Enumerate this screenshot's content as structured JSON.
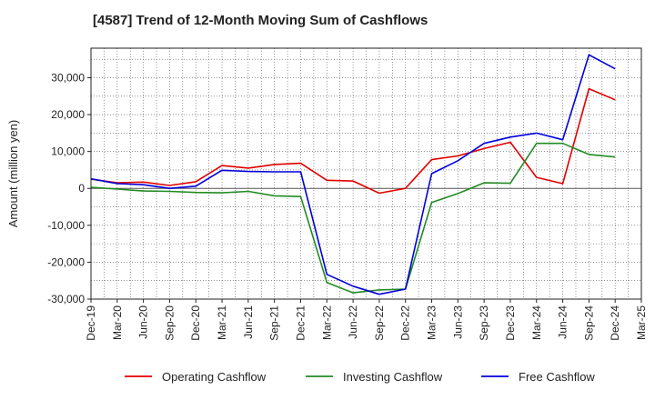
{
  "title": "[4587]  Trend of 12-Month Moving Sum of Cashflows",
  "chart_data": {
    "type": "line",
    "title": "[4587]  Trend of 12-Month Moving Sum of Cashflows",
    "xlabel": "",
    "ylabel": "Amount (million yen)",
    "ylim": [
      -30000,
      38000
    ],
    "yticks": [
      -30000,
      -20000,
      -10000,
      0,
      10000,
      20000,
      30000
    ],
    "ytick_labels": [
      "-30,000",
      "-20,000",
      "-10,000",
      "0",
      "10,000",
      "20,000",
      "30,000"
    ],
    "xtick_labels": [
      "Dec-19",
      "Mar-20",
      "Jun-20",
      "Sep-20",
      "Dec-20",
      "Mar-21",
      "Jun-21",
      "Sep-21",
      "Dec-21",
      "Mar-22",
      "Jun-22",
      "Sep-22",
      "Dec-22",
      "Mar-23",
      "Jun-23",
      "Sep-23",
      "Dec-23",
      "Mar-24",
      "Jun-24",
      "Sep-24",
      "Dec-24",
      "Mar-25"
    ],
    "x": [
      "Dec-19",
      "Mar-20",
      "Jun-20",
      "Sep-20",
      "Dec-20",
      "Mar-21",
      "Jun-21",
      "Sep-21",
      "Dec-21",
      "Mar-22",
      "Jun-22",
      "Sep-22",
      "Dec-22",
      "Mar-23",
      "Jun-23",
      "Sep-23",
      "Dec-23",
      "Mar-24",
      "Jun-24",
      "Sep-24",
      "Dec-24"
    ],
    "grid": true,
    "legend_position": "bottom",
    "series": [
      {
        "name": "Operating Cashflow",
        "color": "#e00000",
        "values": [
          2500,
          1500,
          1700,
          800,
          1800,
          6200,
          5500,
          6500,
          6800,
          2200,
          2000,
          -1300,
          0,
          7800,
          8800,
          10800,
          12500,
          3000,
          1300,
          27000,
          24000
        ]
      },
      {
        "name": "Investing Cashflow",
        "color": "#228b22",
        "values": [
          300,
          -200,
          -700,
          -800,
          -1100,
          -1200,
          -800,
          -2000,
          -2200,
          -25500,
          -28300,
          -27500,
          -27300,
          -3800,
          -1400,
          1500,
          1400,
          12200,
          12200,
          9200,
          8500
        ]
      },
      {
        "name": "Free Cashflow",
        "color": "#0000dd",
        "values": [
          2600,
          1300,
          1000,
          0,
          600,
          4900,
          4600,
          4500,
          4500,
          -23300,
          -26500,
          -28700,
          -27300,
          4000,
          7500,
          12200,
          13900,
          15000,
          13200,
          36200,
          32400
        ]
      }
    ]
  }
}
